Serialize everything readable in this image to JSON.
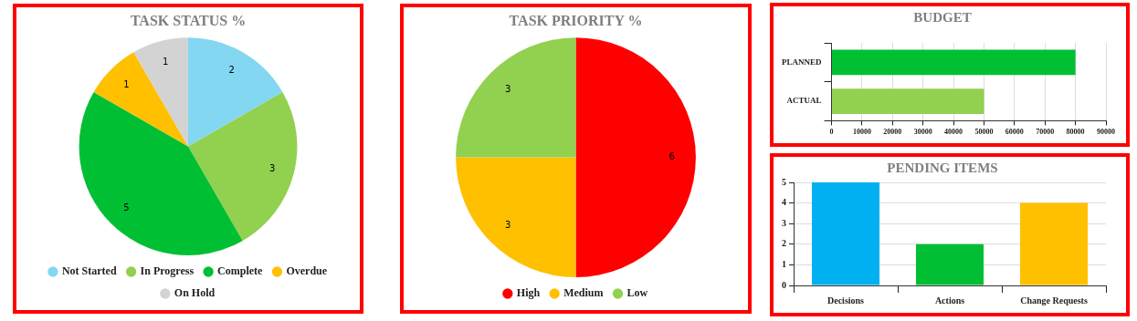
{
  "chart_data": [
    {
      "type": "pie",
      "title": "TASK STATUS %",
      "categories": [
        "Not Started",
        "In Progress",
        "Complete",
        "Overdue",
        "On Hold"
      ],
      "values": [
        2,
        3,
        5,
        1,
        1
      ],
      "colors": [
        "#83d7f0",
        "#92d050",
        "#00bf33",
        "#ffc000",
        "#d3d3d3"
      ],
      "data_labels": true,
      "legend": "bottom"
    },
    {
      "type": "pie",
      "title": "TASK PRIORITY %",
      "categories": [
        "High",
        "Medium",
        "Low"
      ],
      "values": [
        6,
        3,
        3
      ],
      "colors": [
        "#ff0000",
        "#ffc000",
        "#92d050"
      ],
      "data_labels": true,
      "legend": "bottom"
    },
    {
      "type": "bar",
      "title": "BUDGET",
      "orientation": "horizontal",
      "categories": [
        "PLANNED",
        "ACTUAL"
      ],
      "values": [
        80000,
        50000
      ],
      "colors": [
        "#00bf33",
        "#92d050"
      ],
      "xlim": [
        0,
        90000
      ],
      "xticks": [
        0,
        10000,
        20000,
        30000,
        40000,
        50000,
        60000,
        70000,
        80000,
        90000
      ],
      "grid": "x"
    },
    {
      "type": "bar",
      "title": "PENDING ITEMS",
      "categories": [
        "Decisions",
        "Actions",
        "Change Requests"
      ],
      "values": [
        5,
        2,
        4
      ],
      "colors": [
        "#00b0f0",
        "#00bf33",
        "#ffc000"
      ],
      "ylim": [
        0,
        5
      ],
      "yticks": [
        0,
        1,
        2,
        3,
        4,
        5
      ],
      "grid": "y"
    }
  ]
}
